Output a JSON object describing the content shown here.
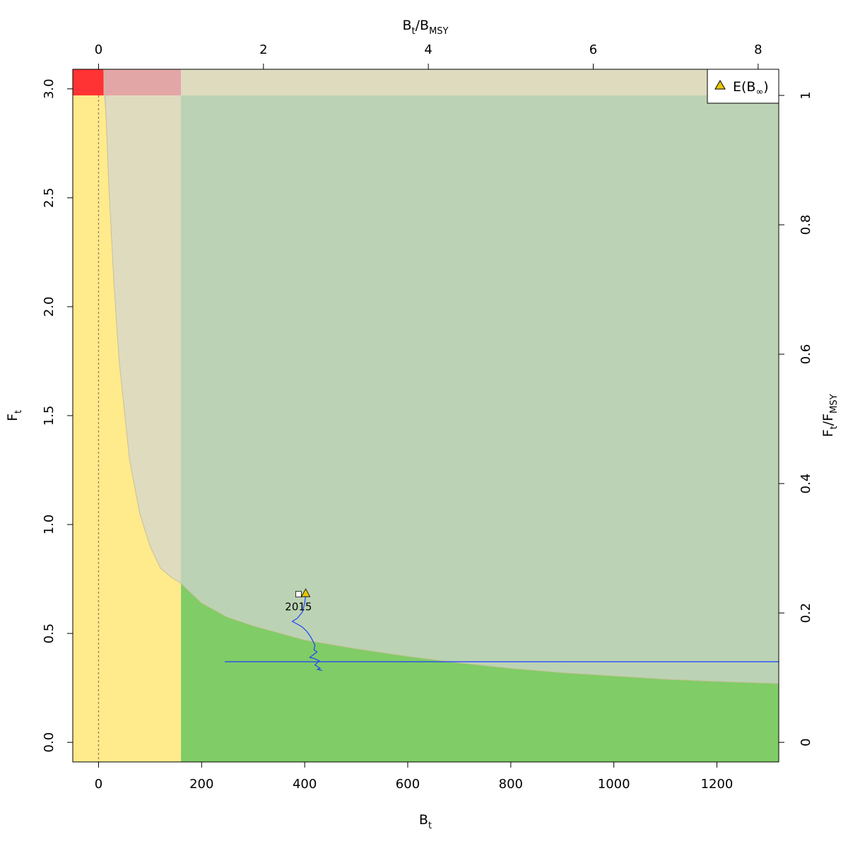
{
  "chart_data": {
    "type": "line",
    "title": "",
    "xlabel": {
      "base": "B",
      "sub": "t"
    },
    "ylabel": {
      "base": "F",
      "sub": "t"
    },
    "x2label": {
      "base1": "B",
      "sub1": "t",
      "sep": "/",
      "base2": "B",
      "sub2": "MSY"
    },
    "y2label": {
      "base1": "F",
      "sub1": "t",
      "sep": "/",
      "base2": "F",
      "sub2": "MSY"
    },
    "xlim": [
      -50,
      1320
    ],
    "ylim": [
      -0.09,
      3.09
    ],
    "x_ticks": [
      0,
      200,
      400,
      600,
      800,
      1000,
      1200
    ],
    "x_tick_labels": [
      "0",
      "200",
      "400",
      "600",
      "800",
      "1000",
      "1200"
    ],
    "y_ticks": [
      0.0,
      0.5,
      1.0,
      1.5,
      2.0,
      2.5,
      3.0
    ],
    "y_tick_labels": [
      "0.0",
      "0.5",
      "1.0",
      "1.5",
      "2.0",
      "2.5",
      "3.0"
    ],
    "bmsy": 160,
    "fmsy": 2.97,
    "x2_ticks": [
      0,
      2,
      4,
      6,
      8
    ],
    "x2_tick_labels": [
      "0",
      "2",
      "4",
      "6",
      "8"
    ],
    "y2_ticks": [
      0,
      0.2,
      0.4,
      0.6,
      0.8,
      1.0
    ],
    "y2_tick_labels": [
      "0",
      "0.2",
      "0.4",
      "0.6",
      "0.8",
      "1"
    ],
    "equilibrium_curve": {
      "x": [
        10,
        15,
        20,
        30,
        40,
        60,
        80,
        100,
        120,
        140,
        160,
        200,
        250,
        300,
        400,
        500,
        600,
        700,
        800,
        900,
        1000,
        1100,
        1200,
        1320
      ],
      "y": [
        3.09,
        2.85,
        2.55,
        2.1,
        1.75,
        1.3,
        1.05,
        0.9,
        0.8,
        0.76,
        0.73,
        0.64,
        0.575,
        0.535,
        0.47,
        0.43,
        0.395,
        0.365,
        0.34,
        0.32,
        0.305,
        0.29,
        0.28,
        0.27
      ]
    },
    "series": [
      {
        "x": [
          245,
          1320
        ],
        "y": [
          0.37,
          0.37
        ]
      },
      {
        "x": [
          434,
          425,
          430,
          420,
          428,
          418,
          410,
          424,
          418,
          420,
          415,
          410,
          404,
          395,
          388,
          380,
          376,
          386,
          396,
          400,
          402
        ],
        "y": [
          0.33,
          0.335,
          0.34,
          0.355,
          0.375,
          0.385,
          0.39,
          0.415,
          0.425,
          0.445,
          0.47,
          0.49,
          0.51,
          0.53,
          0.54,
          0.55,
          0.555,
          0.57,
          0.6,
          0.64,
          0.675
        ]
      }
    ],
    "final_year": {
      "x": 388,
      "y": 0.68,
      "label": "2015"
    },
    "expected_equilibrium": {
      "x": 402,
      "y": 0.685
    },
    "legend": {
      "position": "top-right",
      "label_base": "E(B",
      "label_sub": "∞",
      "label_close": ")"
    },
    "colors": {
      "red_zone": "#ff3333",
      "pink_zone": "#e3a6a6",
      "tan_zone": "#dfdbbf",
      "sage_zone": "#bbd3b4",
      "yellow_zone": "#ffea8c",
      "green_zone": "#80cc66",
      "trajectory": "#1f3fff",
      "bmsy_line": "#8a7a6a",
      "marker_fill": "#e6c700"
    }
  }
}
